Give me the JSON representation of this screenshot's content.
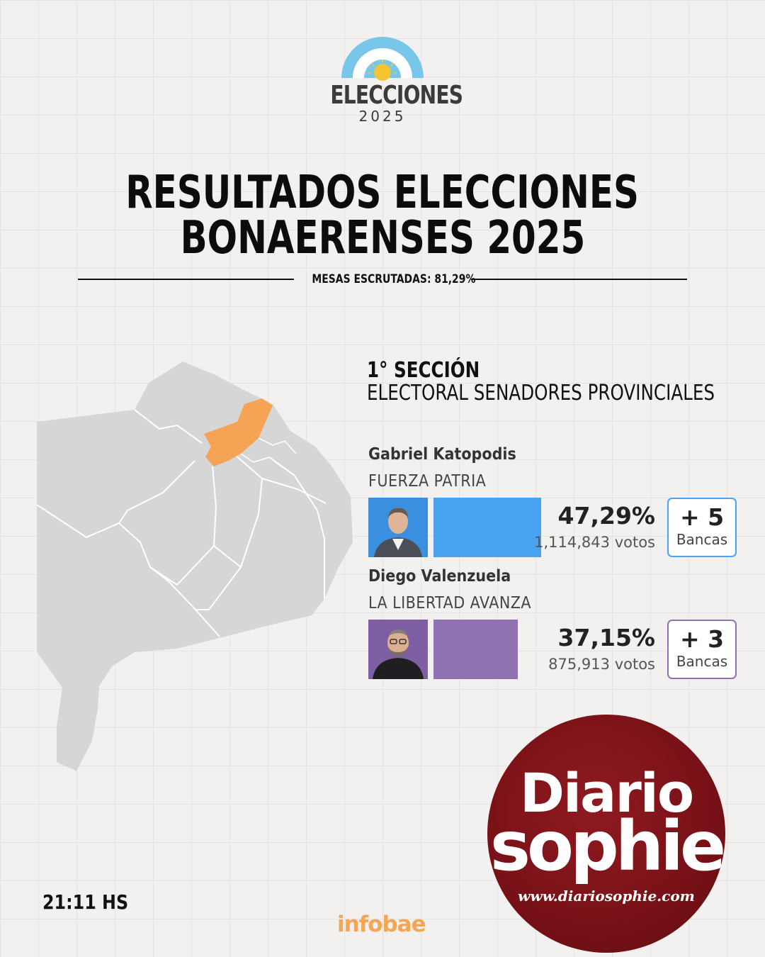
{
  "header": {
    "logo_word": "ELECCIONES",
    "logo_year": "2025",
    "title_line1": "RESULTADOS ELECCIONES",
    "title_line2": "BONAERENSES 2025",
    "mesas": "MESAS ESCRUTADAS: 81,29%"
  },
  "section": {
    "title": "1° SECCIÓN",
    "subtitle": "ELECTORAL SENADORES PROVINCIALES"
  },
  "candidates": [
    {
      "name": "Gabriel Katopodis",
      "party": "FUERZA PATRIA",
      "percent_label": "47,29%",
      "percent": 47.29,
      "votes": "1,114,843 votos",
      "seats_label": "+ 5",
      "seats_unit": "Bancas",
      "color": "#4aa3f1",
      "photo_bg": "#3a90de"
    },
    {
      "name": "Diego Valenzuela",
      "party": "LA LIBERTAD AVANZA",
      "percent_label": "37,15%",
      "percent": 37.15,
      "votes": "875,913 votos",
      "seats_label": "+ 3",
      "seats_unit": "Bancas",
      "color": "#9071b2",
      "photo_bg": "#7e5fa4"
    }
  ],
  "map": {
    "base_color": "#d6d6d6",
    "highlight_color": "#f7a356"
  },
  "footer": {
    "time": "21:11 HS",
    "source": "infobae"
  },
  "badge": {
    "line1": "Diario",
    "line2": "sophie",
    "url": "www.diariosophie.com"
  }
}
